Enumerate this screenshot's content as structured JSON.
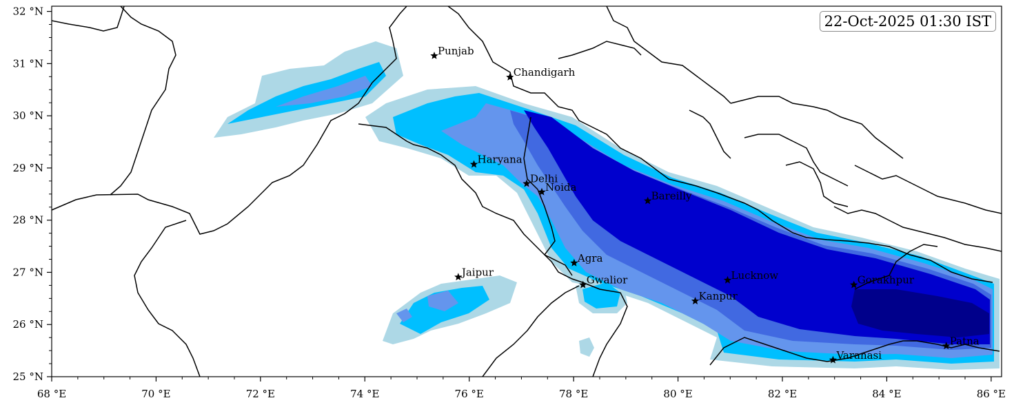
{
  "map": {
    "timestamp": "22-Oct-2025 01:30 IST",
    "lon_range": [
      68,
      86.2
    ],
    "lat_range": [
      25,
      32.1
    ],
    "x_ticks": [
      {
        "value": 68,
        "label": "68 °E"
      },
      {
        "value": 70,
        "label": "70 °E"
      },
      {
        "value": 72,
        "label": "72 °E"
      },
      {
        "value": 74,
        "label": "74 °E"
      },
      {
        "value": 76,
        "label": "76 °E"
      },
      {
        "value": 78,
        "label": "78 °E"
      },
      {
        "value": 80,
        "label": "80 °E"
      },
      {
        "value": 82,
        "label": "82 °E"
      },
      {
        "value": 84,
        "label": "84 °E"
      },
      {
        "value": 86,
        "label": "86 °E"
      }
    ],
    "y_ticks": [
      {
        "value": 32,
        "label": "32 °N"
      },
      {
        "value": 31,
        "label": "31 °N"
      },
      {
        "value": 30,
        "label": "30 °N"
      },
      {
        "value": 29,
        "label": "29 °N"
      },
      {
        "value": 28,
        "label": "28 °N"
      },
      {
        "value": 27,
        "label": "27 °N"
      },
      {
        "value": 26,
        "label": "26 °N"
      },
      {
        "value": 25,
        "label": "25 °N"
      }
    ],
    "shading_colors": [
      "#add8e6",
      "#00bfff",
      "#6495ed",
      "#4169e1",
      "#0000cd",
      "#00008b"
    ],
    "cities": [
      {
        "name": "Punjab",
        "lon": 75.33,
        "lat": 31.15
      },
      {
        "name": "Chandigarh",
        "lon": 76.78,
        "lat": 30.74
      },
      {
        "name": "Haryana",
        "lon": 76.09,
        "lat": 29.07
      },
      {
        "name": "Delhi",
        "lon": 77.1,
        "lat": 28.7
      },
      {
        "name": "Noida",
        "lon": 77.39,
        "lat": 28.54
      },
      {
        "name": "Bareilly",
        "lon": 79.42,
        "lat": 28.37
      },
      {
        "name": "Agra",
        "lon": 78.01,
        "lat": 27.18
      },
      {
        "name": "Jaipur",
        "lon": 75.79,
        "lat": 26.91
      },
      {
        "name": "Gwalior",
        "lon": 78.18,
        "lat": 26.76
      },
      {
        "name": "Lucknow",
        "lon": 80.95,
        "lat": 26.85
      },
      {
        "name": "Kanpur",
        "lon": 80.33,
        "lat": 26.45
      },
      {
        "name": "Gorakhpur",
        "lon": 83.37,
        "lat": 26.76
      },
      {
        "name": "Patna",
        "lon": 85.14,
        "lat": 25.59
      },
      {
        "name": "Varanasi",
        "lon": 82.97,
        "lat": 25.32
      }
    ]
  }
}
